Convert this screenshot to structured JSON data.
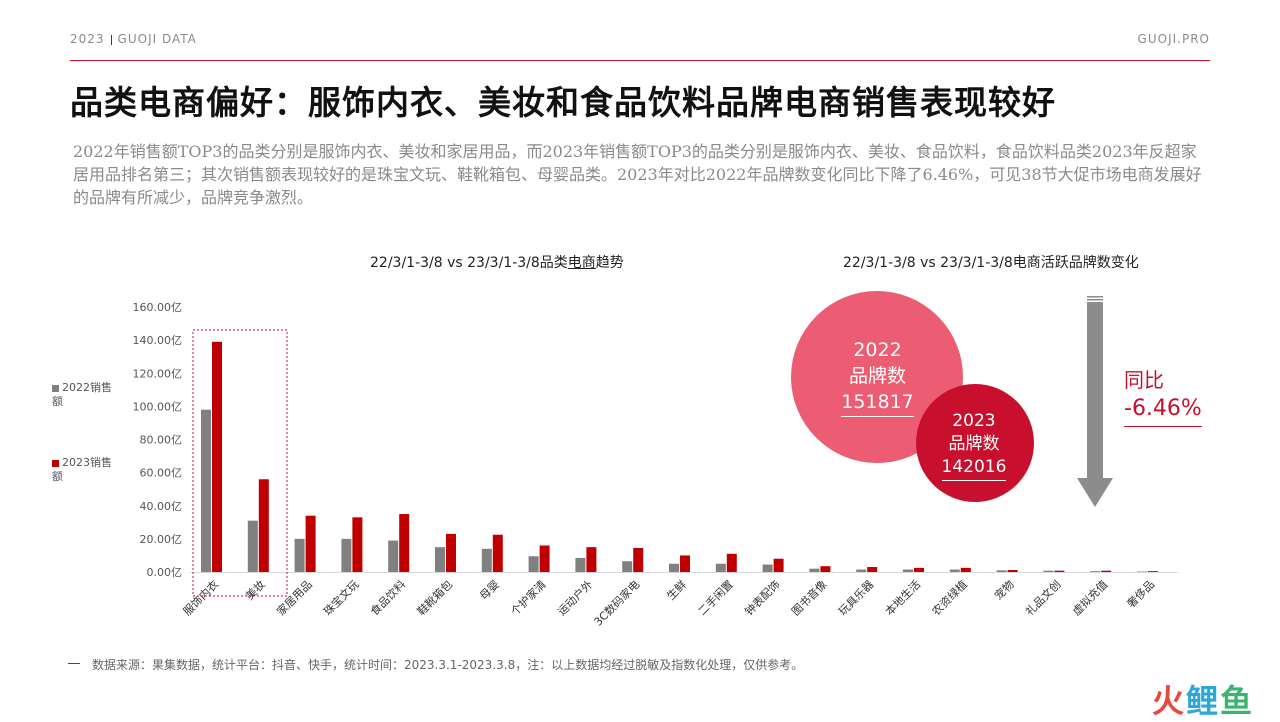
{
  "header": {
    "left_year": "2023",
    "left_brand": "GUOJI DATA",
    "right_brand": "GUOJI.PRO"
  },
  "title": "品类电商偏好：服饰内衣、美妆和食品饮料品牌电商销售表现较好",
  "description": "2022年销售额TOP3的品类分别是服饰内衣、美妆和家居用品，而2023年销售额TOP3的品类分别是服饰内衣、美妆、食品饮料，食品饮料品类2023年反超家居用品排名第三；其次销售额表现较好的是珠宝文玩、鞋靴箱包、母婴品类。2023年对比2022年品牌数变化同比下降了6.46%，可见38节大促市场电商发展好的品牌有所减少，品牌竞争激烈。",
  "left_chart_title": {
    "before": "22/3/1-3/8 vs 23/3/1-3/8品类",
    "underlined": "电商",
    "after": "趋势"
  },
  "right_chart_title": "22/3/1-3/8 vs 23/3/1-3/8电商活跃品牌数变化",
  "chart_data": {
    "type": "bar",
    "unit": "亿",
    "ylim": [
      0,
      160
    ],
    "yticks": [
      "0.00亿",
      "20.00亿",
      "40.00亿",
      "60.00亿",
      "80.00亿",
      "100.00亿",
      "120.00亿",
      "140.00亿",
      "160.00亿"
    ],
    "categories": [
      "服饰内衣",
      "美妆",
      "家居用品",
      "珠宝文玩",
      "食品饮料",
      "鞋靴箱包",
      "母婴",
      "个护家清",
      "运动户外",
      "3C数码家电",
      "生鲜",
      "二手闲置",
      "钟表配饰",
      "图书音像",
      "玩具乐器",
      "本地生活",
      "农资绿植",
      "宠物",
      "礼品文创",
      "虚拟充值",
      "奢侈品"
    ],
    "series": [
      {
        "name": "2022销售额",
        "color": "#808080",
        "values": [
          98,
          31,
          20,
          20,
          19,
          15,
          14,
          9.5,
          8.5,
          6.5,
          5,
          5,
          4.5,
          2,
          1.5,
          1.5,
          1.5,
          1,
          0.8,
          0.5,
          0.3
        ]
      },
      {
        "name": "2023销售额",
        "color": "#c00000",
        "values": [
          139,
          56,
          34,
          33,
          35,
          23,
          22.5,
          16,
          15,
          14.5,
          10,
          11,
          8,
          3.5,
          3,
          2.5,
          2.5,
          1.2,
          0.8,
          0.8,
          0.5
        ]
      }
    ],
    "highlight_categories": [
      "服饰内衣",
      "美妆"
    ],
    "legend_position": "left",
    "grid": false
  },
  "brand_change": {
    "circle_2022": {
      "year": "2022",
      "label": "品牌数",
      "value": "151817",
      "color": "#ec5c72"
    },
    "circle_2023": {
      "year": "2023",
      "label": "品牌数",
      "value": "142016",
      "color": "#c8102e"
    },
    "yoy_label": "同比",
    "yoy_value": "-6.46%",
    "arrow_color": "#8c8c8c"
  },
  "footer": "数据来源：果集数据，统计平台：抖音、快手，统计时间：2023.3.1-2023.3.8，注：以上数据均经过脱敏及指数化处理，仅供参考。",
  "logo": {
    "part1": "火",
    "part2": "鲤",
    "part3": "鱼"
  }
}
